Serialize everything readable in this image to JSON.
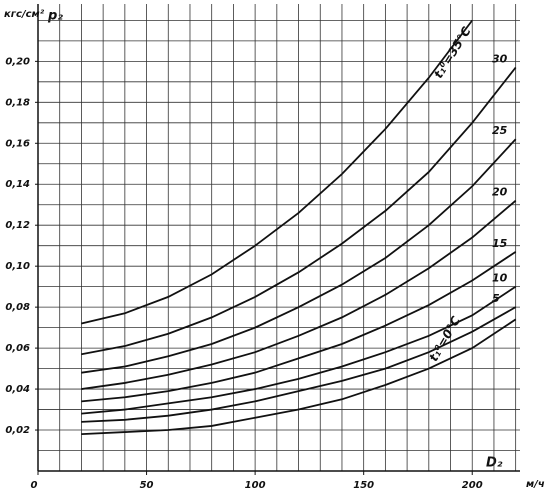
{
  "chart_data": {
    "type": "line",
    "y_unit_label": "кгс/см²",
    "y_axis_label": "p₂",
    "x_axis_label": "D₂",
    "x_unit_label": "м/ч",
    "x": [
      20,
      40,
      60,
      80,
      100,
      120,
      140,
      160,
      180,
      200,
      220
    ],
    "series": [
      {
        "name": "t₁⁰=35°C",
        "color": "#111111",
        "values": [
          0.072,
          0.077,
          0.085,
          0.096,
          0.11,
          0.126,
          0.145,
          0.167,
          0.192,
          0.22,
          null
        ]
      },
      {
        "name": "30",
        "color": "#111111",
        "values": [
          0.057,
          0.061,
          0.067,
          0.075,
          0.085,
          0.097,
          0.111,
          0.127,
          0.146,
          0.17,
          0.197
        ]
      },
      {
        "name": "25",
        "color": "#111111",
        "values": [
          0.048,
          0.051,
          0.056,
          0.062,
          0.07,
          0.08,
          0.091,
          0.104,
          0.12,
          0.139,
          0.162
        ]
      },
      {
        "name": "20",
        "color": "#111111",
        "values": [
          0.04,
          0.043,
          0.047,
          0.052,
          0.058,
          0.066,
          0.075,
          0.086,
          0.099,
          0.114,
          0.132
        ]
      },
      {
        "name": "15",
        "color": "#111111",
        "values": [
          0.034,
          0.036,
          0.039,
          0.043,
          0.048,
          0.055,
          0.062,
          0.071,
          0.081,
          0.093,
          0.107
        ]
      },
      {
        "name": "10",
        "color": "#111111",
        "values": [
          0.028,
          0.03,
          0.033,
          0.036,
          0.04,
          0.045,
          0.051,
          0.058,
          0.066,
          0.076,
          0.09
        ]
      },
      {
        "name": "5",
        "color": "#111111",
        "values": [
          0.024,
          0.025,
          0.027,
          0.03,
          0.034,
          0.039,
          0.044,
          0.05,
          0.058,
          0.068,
          0.08
        ]
      },
      {
        "name": "t₁⁰=0°C",
        "color": "#111111",
        "values": [
          0.018,
          0.019,
          0.02,
          0.022,
          0.026,
          0.03,
          0.035,
          0.042,
          0.05,
          0.06,
          0.074
        ]
      }
    ],
    "xlim": [
      0,
      222
    ],
    "ylim": [
      0,
      0.228
    ],
    "xticks": [
      0,
      50,
      100,
      150,
      200
    ],
    "yticks": [
      {
        "value": 0.02,
        "label": "0,02"
      },
      {
        "value": 0.04,
        "label": "0,04"
      },
      {
        "value": 0.06,
        "label": "0,06"
      },
      {
        "value": 0.08,
        "label": "0,08"
      },
      {
        "value": 0.1,
        "label": "0,10"
      },
      {
        "value": 0.12,
        "label": "0,12"
      },
      {
        "value": 0.14,
        "label": "0,14"
      },
      {
        "value": 0.16,
        "label": "0,16"
      },
      {
        "value": 0.18,
        "label": "0,18"
      },
      {
        "value": 0.2,
        "label": "0,20"
      }
    ],
    "x_grid": [
      10,
      20,
      30,
      40,
      50,
      60,
      70,
      80,
      90,
      100,
      110,
      120,
      130,
      140,
      150,
      160,
      170,
      180,
      190,
      200,
      210,
      220
    ],
    "y_grid": [
      0.01,
      0.02,
      0.03,
      0.04,
      0.05,
      0.06,
      0.07,
      0.08,
      0.09,
      0.1,
      0.11,
      0.12,
      0.13,
      0.14,
      0.15,
      0.16,
      0.17,
      0.18,
      0.19,
      0.2,
      0.21,
      0.22
    ],
    "grid": true
  }
}
